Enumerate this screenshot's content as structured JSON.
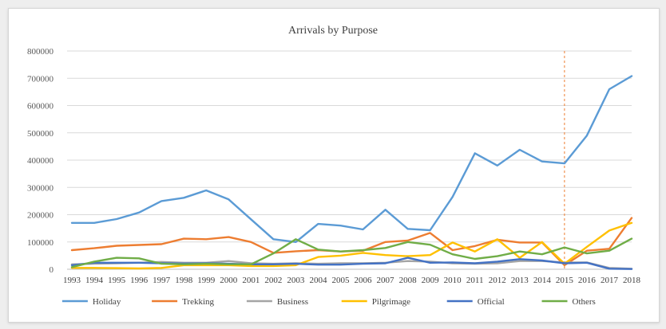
{
  "chart_data": {
    "type": "line",
    "title": "Arrivals  by Purpose",
    "xlabel": "",
    "ylabel": "",
    "ylim": [
      0,
      800000
    ],
    "yticks": [
      0,
      100000,
      200000,
      300000,
      400000,
      500000,
      600000,
      700000,
      800000
    ],
    "categories": [
      "1993",
      "1994",
      "1995",
      "1996",
      "1997",
      "1998",
      "1999",
      "2000",
      "2001",
      "2002",
      "2003",
      "2004",
      "2005",
      "2006",
      "2007",
      "2008",
      "2009",
      "2010",
      "2011",
      "2012",
      "2013",
      "2014",
      "2015",
      "2016",
      "2017",
      "2018"
    ],
    "grid": true,
    "legend_position": "bottom",
    "marker_line": {
      "category": "2015",
      "color": "#ed7d31",
      "style": "dashed"
    },
    "series": [
      {
        "name": "Holiday",
        "color": "#5b9bd5",
        "values": [
          170000,
          170000,
          184000,
          208000,
          250000,
          262000,
          289000,
          256000,
          183000,
          110000,
          100000,
          166000,
          160000,
          146000,
          218000,
          148000,
          143000,
          265000,
          425000,
          380000,
          438000,
          395000,
          388000,
          490000,
          660000,
          708000
        ]
      },
      {
        "name": "Trekking",
        "color": "#ed7d31",
        "values": [
          70000,
          77000,
          86000,
          89000,
          92000,
          112000,
          110000,
          118000,
          100000,
          60000,
          66000,
          70000,
          65000,
          68000,
          100000,
          105000,
          133000,
          70000,
          85000,
          108000,
          98000,
          98000,
          15000,
          68000,
          75000,
          188000
        ]
      },
      {
        "name": "Business",
        "color": "#a5a5a5",
        "values": [
          18000,
          20000,
          22000,
          24000,
          27000,
          24000,
          24000,
          30000,
          22000,
          20000,
          22000,
          20000,
          22000,
          22000,
          24000,
          30000,
          28000,
          22000,
          20000,
          22000,
          30000,
          30000,
          25000,
          25000,
          5000,
          2000
        ]
      },
      {
        "name": "Pilgrimage",
        "color": "#ffc000",
        "values": [
          5000,
          5000,
          4000,
          3000,
          5000,
          15000,
          15000,
          15000,
          12000,
          12000,
          15000,
          45000,
          50000,
          60000,
          52000,
          48000,
          52000,
          98000,
          65000,
          110000,
          42000,
          100000,
          20000,
          82000,
          142000,
          170000
        ]
      },
      {
        "name": "Official",
        "color": "#4472c4",
        "values": [
          15000,
          24000,
          24000,
          24000,
          22000,
          21000,
          22000,
          20000,
          18000,
          18000,
          20000,
          17000,
          17000,
          20000,
          22000,
          42000,
          24000,
          25000,
          22000,
          28000,
          37000,
          32000,
          22000,
          24000,
          2000,
          1000
        ]
      },
      {
        "name": "Others",
        "color": "#70ad47",
        "values": [
          8000,
          28000,
          42000,
          40000,
          20000,
          18000,
          20000,
          18000,
          18000,
          58000,
          110000,
          72000,
          65000,
          70000,
          78000,
          100000,
          90000,
          55000,
          38000,
          48000,
          65000,
          55000,
          80000,
          58000,
          68000,
          112000
        ]
      }
    ]
  }
}
